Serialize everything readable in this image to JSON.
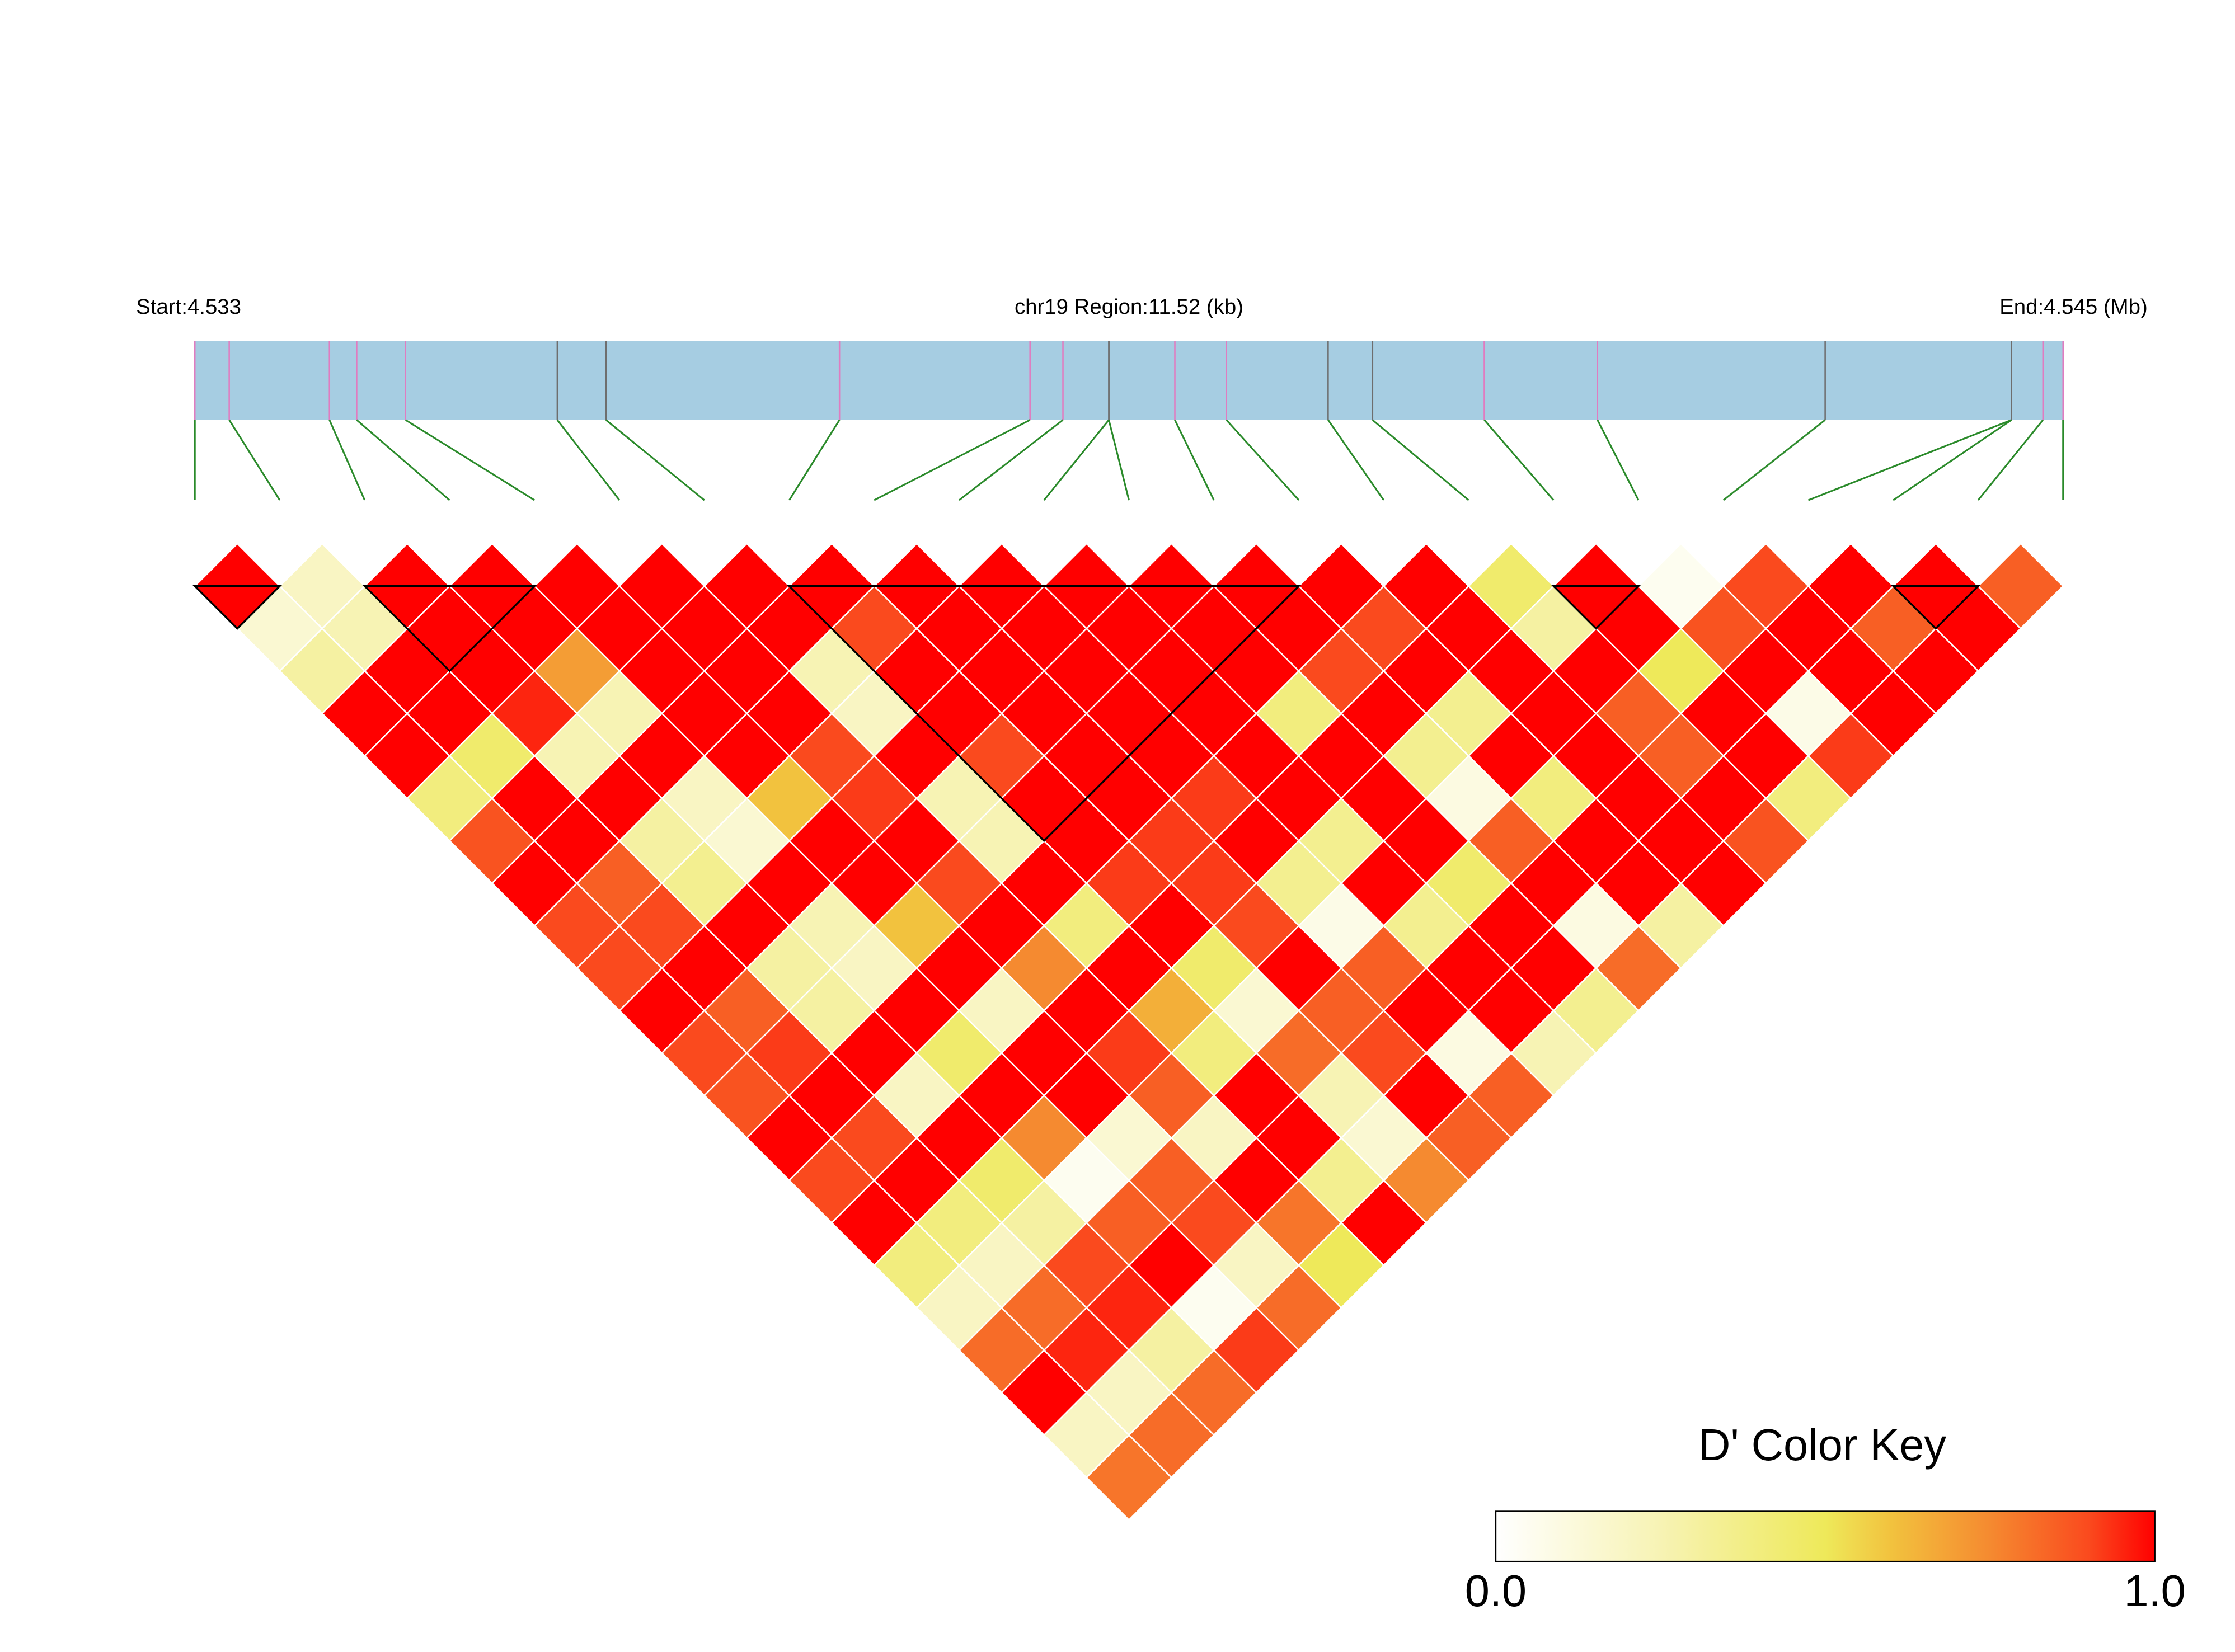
{
  "chart_data": {
    "type": "ld-heatmap",
    "start_label": "Start:4.533",
    "region_label": "chr19 Region:11.52 (kb)",
    "end_label": "End:4.545 (Mb)",
    "key_title": "D' Color Key",
    "xlim": [
      0,
      11.52
    ],
    "snp_positions": [
      0,
      0.212,
      0.83,
      0.998,
      1.299,
      2.235,
      2.535,
      3.975,
      5.15,
      5.353,
      5.636,
      5.636,
      6.043,
      6.361,
      6.988,
      7.262,
      7.951,
      8.649,
      10.053,
      11.202,
      11.202,
      11.396,
      11.52
    ],
    "snp_line_colors": [
      "#e07cc0",
      "#e07cc0",
      "#e07cc0",
      "#e07cc0",
      "#e07cc0",
      "#6e6e6e",
      "#6e6e6e",
      "#e07cc0",
      "#e07cc0",
      "#e07cc0",
      "#6e6e6e",
      "#6e6e6e",
      "#e07cc0",
      "#e07cc0",
      "#6e6e6e",
      "#6e6e6e",
      "#e07cc0",
      "#e07cc0",
      "#6e6e6e",
      "#6e6e6e",
      "#6e6e6e",
      "#e07cc0",
      "#e07cc0"
    ],
    "bar_color": "#a6cde2",
    "connector_color": "#2a8a2a",
    "block_color": "#000000",
    "blocks": [
      [
        0,
        1
      ],
      [
        2,
        4
      ],
      [
        7,
        13
      ],
      [
        16,
        17
      ],
      [
        20,
        21
      ]
    ],
    "colorscale": [
      [
        0,
        "#ffffff"
      ],
      [
        0.25,
        "#f7f3b4"
      ],
      [
        0.5,
        "#eee95a"
      ],
      [
        0.6,
        "#f2c23e"
      ],
      [
        0.75,
        "#f58a30"
      ],
      [
        0.9,
        "#fa4a1e"
      ],
      [
        1,
        "#ff0000"
      ]
    ],
    "key_lim": [
      0,
      1
    ],
    "key_ticks": [
      {
        "value": 0,
        "label": "0.0"
      },
      {
        "value": 1,
        "label": "1.0"
      }
    ],
    "diagonals": [
      [
        1,
        0.2,
        1,
        1,
        1,
        1,
        1,
        1,
        1,
        1,
        1,
        1,
        1,
        1,
        1,
        0.45,
        1,
        0.05,
        0.9,
        1,
        1,
        0.85
      ],
      [
        0.15,
        0.25,
        1,
        1,
        1,
        1,
        1,
        0.9,
        1,
        1,
        1,
        1,
        1,
        0.9,
        1,
        0.3,
        1,
        0.88,
        1,
        0.85,
        1
      ],
      [
        0.3,
        1,
        1,
        0.7,
        1,
        1,
        0.25,
        1,
        1,
        1,
        1,
        1,
        0.9,
        1,
        1,
        1,
        0.5,
        1,
        1,
        1
      ],
      [
        1,
        1,
        0.95,
        0.25,
        1,
        1,
        0.2,
        1,
        1,
        1,
        1,
        0.4,
        1,
        0.35,
        1,
        0.85,
        1,
        0.08,
        1
      ],
      [
        1,
        0.45,
        0.25,
        1,
        1,
        0.9,
        1,
        0.9,
        1,
        1,
        1,
        1,
        0.35,
        1,
        1,
        0.85,
        1,
        0.92
      ],
      [
        0.4,
        1,
        1,
        0.2,
        0.6,
        0.92,
        0.25,
        1,
        1,
        0.92,
        1,
        1,
        0.1,
        0.4,
        1,
        1,
        0.4
      ],
      [
        0.88,
        1,
        0.3,
        0.15,
        1,
        1,
        0.25,
        1,
        0.92,
        1,
        0.35,
        1,
        0.85,
        1,
        1,
        0.88
      ],
      [
        1,
        0.85,
        0.35,
        1,
        1,
        0.9,
        1,
        0.92,
        0.92,
        0.35,
        1,
        0.45,
        1,
        1,
        1
      ],
      [
        0.9,
        0.9,
        1,
        0.25,
        0.6,
        1,
        0.4,
        1,
        0.9,
        0.08,
        0.35,
        1,
        0.1,
        0.3
      ],
      [
        0.9,
        1,
        0.3,
        0.2,
        1,
        0.75,
        1,
        0.45,
        1,
        0.85,
        1,
        1,
        0.82
      ],
      [
        1,
        0.85,
        0.3,
        1,
        0.2,
        1,
        0.65,
        0.15,
        0.85,
        1,
        1,
        0.35
      ],
      [
        0.9,
        0.92,
        1,
        0.45,
        1,
        0.92,
        0.4,
        0.82,
        0.9,
        0.1,
        0.25
      ],
      [
        0.88,
        1,
        0.2,
        1,
        1,
        0.85,
        1,
        0.25,
        1,
        0.85
      ],
      [
        1,
        0.9,
        1,
        0.75,
        0.15,
        0.2,
        1,
        0.15,
        0.85
      ],
      [
        0.9,
        1,
        0.45,
        0.05,
        0.85,
        1,
        0.35,
        0.75
      ],
      [
        1,
        0.4,
        0.3,
        0.85,
        0.9,
        0.8,
        1
      ],
      [
        0.4,
        0.2,
        0.9,
        1,
        0.2,
        0.5
      ],
      [
        0.2,
        0.82,
        0.95,
        0.05,
        0.82
      ],
      [
        0.82,
        0.95,
        0.3,
        0.92
      ],
      [
        1,
        0.2,
        0.82
      ],
      [
        0.2,
        0.82
      ],
      [
        0.8
      ]
    ]
  }
}
